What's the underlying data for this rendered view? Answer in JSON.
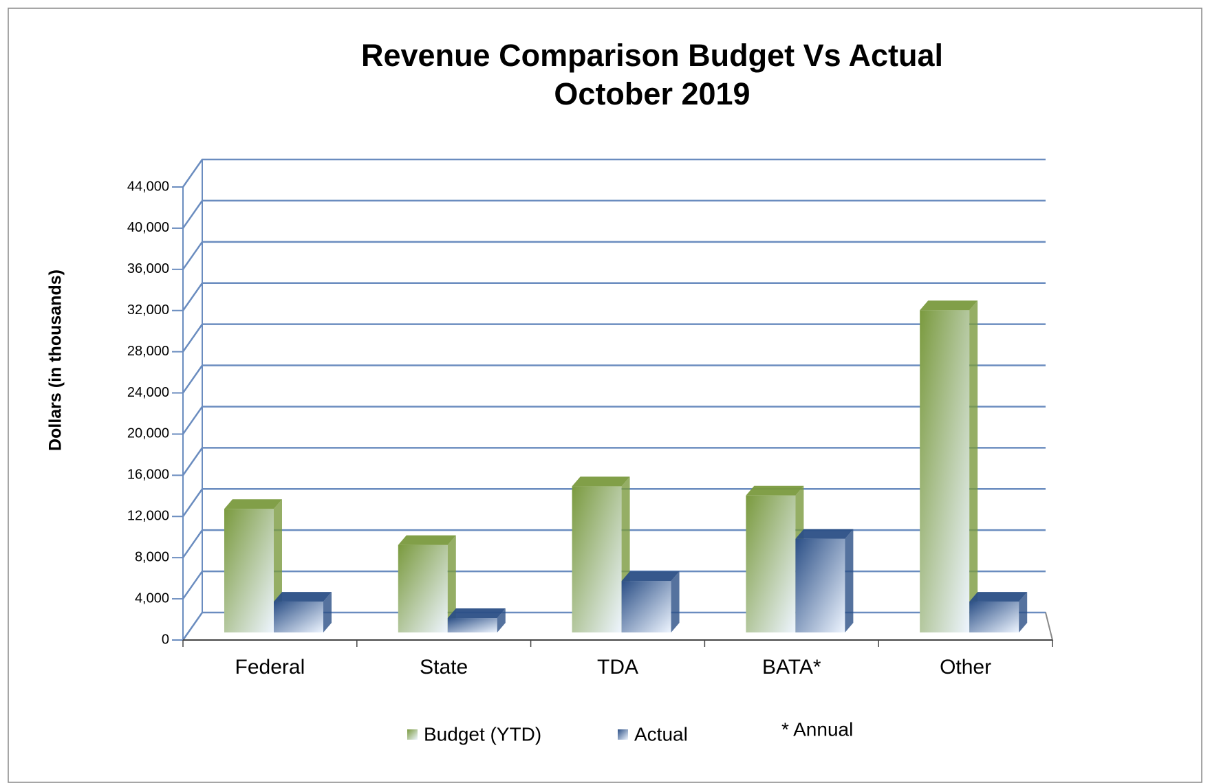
{
  "chart_data": {
    "type": "bar3d",
    "title": "Revenue Comparison Budget Vs Actual",
    "subtitle": "October 2019",
    "y_label": "Dollars (in thousands)",
    "annotation": "* Annual",
    "categories": [
      "Federal",
      "State",
      "TDA",
      "BATA*",
      "Other"
    ],
    "series": [
      {
        "name": "Budget (YTD)",
        "color": "#7a9a3e",
        "values": [
          12000,
          8500,
          14200,
          13300,
          31300
        ]
      },
      {
        "name": "Actual",
        "color": "#2b4f86",
        "values": [
          3000,
          1400,
          5000,
          9100,
          3000
        ]
      }
    ],
    "ylim": [
      0,
      44000
    ],
    "yticks": [
      0,
      {
        "value": 4000,
        "label": "4,000"
      },
      {
        "value": 8000,
        "label": "8,000"
      },
      {
        "value": 12000,
        "label": "12,000"
      },
      {
        "value": 16000,
        "label": "16,000"
      },
      {
        "value": 20000,
        "label": "20,000"
      },
      {
        "value": 24000,
        "label": "24,000"
      },
      {
        "value": 28000,
        "label": "28,000"
      },
      {
        "value": 32000,
        "label": "32,000"
      },
      {
        "value": 36000,
        "label": "36,000"
      },
      {
        "value": 40000,
        "label": "40,000"
      },
      {
        "value": 44000,
        "label": "44,000"
      }
    ],
    "grid": true
  }
}
